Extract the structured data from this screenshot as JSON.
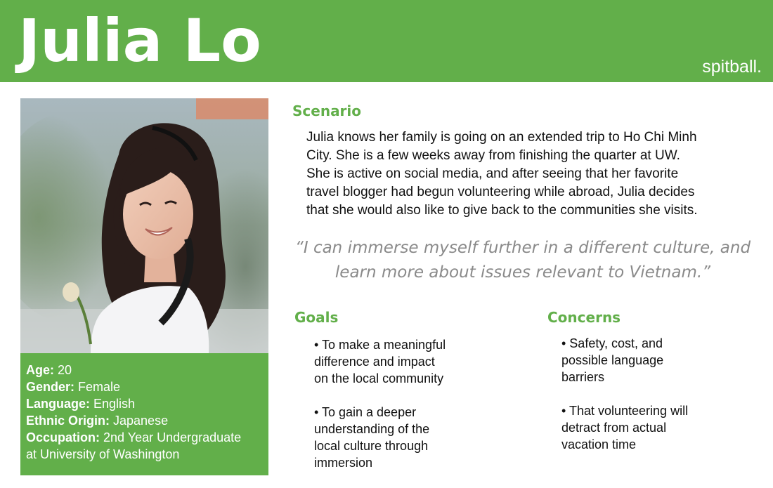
{
  "header": {
    "name": "Julia Lo",
    "brand": "spitball."
  },
  "profile": {
    "age_label": "Age:",
    "age_value": "20",
    "gender_label": "Gender:",
    "gender_value": "Female",
    "language_label": "Language:",
    "language_value": "English",
    "ethnic_label": "Ethnic Origin:",
    "ethnic_value": "Japanese",
    "occupation_label": "Occupation:",
    "occupation_value_line1": "2nd Year Undergraduate",
    "occupation_value_line2": "at University of Washington"
  },
  "scenario": {
    "title": "Scenario",
    "lines": [
      "Julia knows her family is going on an extended trip to Ho Chi Minh",
      "City. She is a few weeks away from finishing the quarter at UW.",
      "She is active on social media, and after seeing that her favorite",
      "travel blogger had begun volunteering while abroad, Julia decides",
      "that she would also like to give back to the communities she visits."
    ]
  },
  "quote": {
    "lines": [
      "“I can immerse myself further in a different culture, and",
      "learn more about issues relevant to Vietnam.”"
    ]
  },
  "goals": {
    "title": "Goals",
    "items": [
      {
        "lines": [
          "• To make a meaningful",
          "difference and impact",
          "on the local community"
        ]
      },
      {
        "lines": [
          "• To gain a deeper",
          "understanding of the",
          "local culture through",
          "immersion"
        ]
      }
    ]
  },
  "concerns": {
    "title": "Concerns",
    "items": [
      {
        "lines": [
          "• Safety, cost, and",
          "possible language",
          "barriers"
        ]
      },
      {
        "lines": [
          "• That volunteering will",
          "detract from actual",
          "vacation time"
        ]
      }
    ]
  },
  "colors": {
    "brand_green": "#62af4a",
    "quote_gray": "#8a8a8a"
  }
}
